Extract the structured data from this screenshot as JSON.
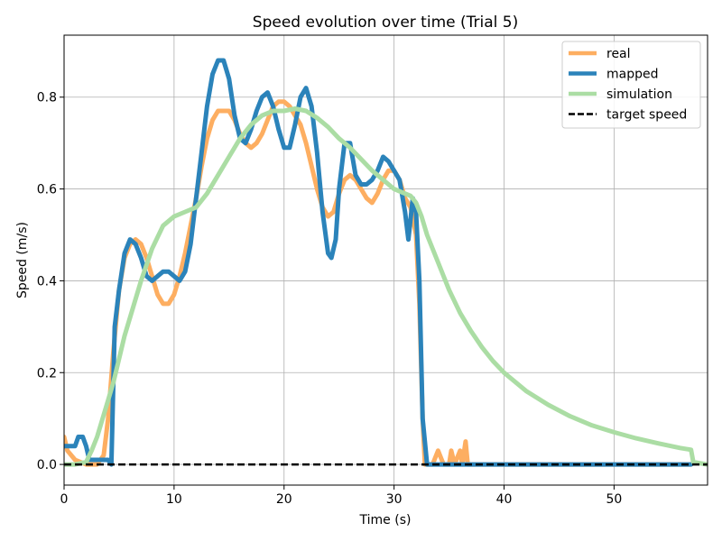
{
  "chart_data": {
    "type": "line",
    "title": "Speed evolution over time (Trial 5)",
    "xlabel": "Time (s)",
    "ylabel": "Speed (m/s)",
    "xlim": [
      0,
      58.5
    ],
    "ylim": [
      -0.045,
      0.935
    ],
    "xticks": [
      0,
      10,
      20,
      30,
      40,
      50
    ],
    "yticks": [
      0.0,
      0.2,
      0.4,
      0.6,
      0.8
    ],
    "xtick_labels": [
      "0",
      "10",
      "20",
      "30",
      "40",
      "50"
    ],
    "ytick_labels": [
      "0.0",
      "0.2",
      "0.4",
      "0.6",
      "0.8"
    ],
    "grid": true,
    "legend_position": "top-right",
    "series": [
      {
        "name": "real",
        "color": "#fdae61",
        "points": [
          [
            0,
            0.06
          ],
          [
            0.3,
            0.03
          ],
          [
            1,
            0.01
          ],
          [
            2,
            0.0
          ],
          [
            3,
            0.0
          ],
          [
            3.6,
            0.02
          ],
          [
            4,
            0.1
          ],
          [
            4.5,
            0.25
          ],
          [
            5,
            0.38
          ],
          [
            5.5,
            0.45
          ],
          [
            6,
            0.48
          ],
          [
            6.5,
            0.49
          ],
          [
            7,
            0.48
          ],
          [
            7.5,
            0.45
          ],
          [
            8,
            0.41
          ],
          [
            8.5,
            0.37
          ],
          [
            9,
            0.35
          ],
          [
            9.5,
            0.35
          ],
          [
            10,
            0.37
          ],
          [
            10.5,
            0.41
          ],
          [
            11,
            0.46
          ],
          [
            11.5,
            0.52
          ],
          [
            12,
            0.58
          ],
          [
            12.5,
            0.65
          ],
          [
            13,
            0.71
          ],
          [
            13.5,
            0.75
          ],
          [
            14,
            0.77
          ],
          [
            14.5,
            0.77
          ],
          [
            15,
            0.77
          ],
          [
            15.5,
            0.75
          ],
          [
            16,
            0.72
          ],
          [
            16.5,
            0.7
          ],
          [
            17,
            0.69
          ],
          [
            17.5,
            0.7
          ],
          [
            18,
            0.72
          ],
          [
            18.5,
            0.75
          ],
          [
            19,
            0.78
          ],
          [
            19.5,
            0.79
          ],
          [
            20,
            0.79
          ],
          [
            20.5,
            0.78
          ],
          [
            21,
            0.76
          ],
          [
            21.5,
            0.74
          ],
          [
            22,
            0.7
          ],
          [
            22.5,
            0.65
          ],
          [
            23,
            0.6
          ],
          [
            23.5,
            0.56
          ],
          [
            24,
            0.54
          ],
          [
            24.5,
            0.55
          ],
          [
            25,
            0.59
          ],
          [
            25.5,
            0.62
          ],
          [
            26,
            0.63
          ],
          [
            26.5,
            0.62
          ],
          [
            27,
            0.6
          ],
          [
            27.5,
            0.58
          ],
          [
            28,
            0.57
          ],
          [
            28.5,
            0.59
          ],
          [
            29,
            0.62
          ],
          [
            29.5,
            0.64
          ],
          [
            30,
            0.64
          ],
          [
            30.5,
            0.62
          ],
          [
            31,
            0.58
          ],
          [
            31.5,
            0.56
          ],
          [
            32,
            0.5
          ],
          [
            32.3,
            0.35
          ],
          [
            32.6,
            0.1
          ],
          [
            32.8,
            0.0
          ],
          [
            33.5,
            0.0
          ],
          [
            34,
            0.03
          ],
          [
            34.5,
            0.0
          ],
          [
            35,
            0.0
          ],
          [
            35.2,
            0.03
          ],
          [
            35.5,
            0.0
          ],
          [
            36,
            0.03
          ],
          [
            36.2,
            0.0
          ],
          [
            36.5,
            0.05
          ],
          [
            36.7,
            0.0
          ],
          [
            40,
            0.0
          ],
          [
            50,
            0.0
          ],
          [
            57,
            0.0
          ]
        ]
      },
      {
        "name": "mapped",
        "color": "#2b83ba",
        "points": [
          [
            0,
            0.04
          ],
          [
            0.5,
            0.04
          ],
          [
            1,
            0.04
          ],
          [
            1.3,
            0.06
          ],
          [
            1.7,
            0.06
          ],
          [
            2,
            0.04
          ],
          [
            2.3,
            0.01
          ],
          [
            3,
            0.01
          ],
          [
            4,
            0.01
          ],
          [
            4.3,
            0.0
          ],
          [
            4.6,
            0.3
          ],
          [
            5,
            0.38
          ],
          [
            5.5,
            0.46
          ],
          [
            6,
            0.49
          ],
          [
            6.5,
            0.48
          ],
          [
            7,
            0.45
          ],
          [
            7.5,
            0.41
          ],
          [
            8,
            0.4
          ],
          [
            8.5,
            0.41
          ],
          [
            9,
            0.42
          ],
          [
            9.5,
            0.42
          ],
          [
            10,
            0.41
          ],
          [
            10.5,
            0.4
          ],
          [
            11,
            0.42
          ],
          [
            11.5,
            0.48
          ],
          [
            12,
            0.58
          ],
          [
            12.5,
            0.68
          ],
          [
            13,
            0.78
          ],
          [
            13.5,
            0.85
          ],
          [
            14,
            0.88
          ],
          [
            14.5,
            0.88
          ],
          [
            15,
            0.84
          ],
          [
            15.5,
            0.76
          ],
          [
            16,
            0.71
          ],
          [
            16.5,
            0.7
          ],
          [
            17,
            0.73
          ],
          [
            17.5,
            0.77
          ],
          [
            18,
            0.8
          ],
          [
            18.5,
            0.81
          ],
          [
            19,
            0.78
          ],
          [
            19.5,
            0.73
          ],
          [
            20,
            0.69
          ],
          [
            20.5,
            0.69
          ],
          [
            21,
            0.74
          ],
          [
            21.5,
            0.8
          ],
          [
            22,
            0.82
          ],
          [
            22.5,
            0.78
          ],
          [
            23,
            0.68
          ],
          [
            23.5,
            0.55
          ],
          [
            24,
            0.46
          ],
          [
            24.3,
            0.45
          ],
          [
            24.7,
            0.49
          ],
          [
            25,
            0.6
          ],
          [
            25.5,
            0.7
          ],
          [
            26,
            0.7
          ],
          [
            26.5,
            0.63
          ],
          [
            27,
            0.61
          ],
          [
            27.5,
            0.61
          ],
          [
            28,
            0.62
          ],
          [
            28.5,
            0.64
          ],
          [
            29,
            0.67
          ],
          [
            29.5,
            0.66
          ],
          [
            30,
            0.64
          ],
          [
            30.5,
            0.62
          ],
          [
            31,
            0.55
          ],
          [
            31.3,
            0.49
          ],
          [
            31.7,
            0.58
          ],
          [
            32,
            0.55
          ],
          [
            32.3,
            0.4
          ],
          [
            32.6,
            0.1
          ],
          [
            33,
            0.0
          ],
          [
            40,
            0.0
          ],
          [
            50,
            0.0
          ],
          [
            57,
            0.0
          ]
        ]
      },
      {
        "name": "simulation",
        "color": "#abdda4",
        "points": [
          [
            0,
            0.0
          ],
          [
            1,
            0.0
          ],
          [
            2,
            0.005
          ],
          [
            2.5,
            0.03
          ],
          [
            3,
            0.06
          ],
          [
            3.5,
            0.1
          ],
          [
            4,
            0.14
          ],
          [
            4.5,
            0.18
          ],
          [
            5,
            0.23
          ],
          [
            5.5,
            0.28
          ],
          [
            6,
            0.32
          ],
          [
            7,
            0.4
          ],
          [
            8,
            0.47
          ],
          [
            9,
            0.52
          ],
          [
            10,
            0.54
          ],
          [
            11,
            0.55
          ],
          [
            12,
            0.56
          ],
          [
            13,
            0.59
          ],
          [
            14,
            0.63
          ],
          [
            15,
            0.67
          ],
          [
            16,
            0.71
          ],
          [
            17,
            0.74
          ],
          [
            18,
            0.76
          ],
          [
            19,
            0.77
          ],
          [
            20,
            0.77
          ],
          [
            21,
            0.775
          ],
          [
            22,
            0.77
          ],
          [
            23,
            0.755
          ],
          [
            24,
            0.735
          ],
          [
            25,
            0.71
          ],
          [
            26,
            0.69
          ],
          [
            27,
            0.665
          ],
          [
            28,
            0.64
          ],
          [
            29,
            0.62
          ],
          [
            30,
            0.6
          ],
          [
            31,
            0.59
          ],
          [
            31.5,
            0.585
          ],
          [
            32,
            0.57
          ],
          [
            32.5,
            0.54
          ],
          [
            33,
            0.5
          ],
          [
            34,
            0.44
          ],
          [
            35,
            0.38
          ],
          [
            36,
            0.33
          ],
          [
            37,
            0.29
          ],
          [
            38,
            0.255
          ],
          [
            39,
            0.225
          ],
          [
            40,
            0.2
          ],
          [
            42,
            0.16
          ],
          [
            44,
            0.13
          ],
          [
            46,
            0.105
          ],
          [
            48,
            0.085
          ],
          [
            50,
            0.07
          ],
          [
            52,
            0.057
          ],
          [
            54,
            0.046
          ],
          [
            56,
            0.036
          ],
          [
            57,
            0.032
          ],
          [
            57.2,
            0.005
          ],
          [
            58.5,
            0.0
          ]
        ]
      },
      {
        "name": "target speed",
        "color": "#000000",
        "dashed": true,
        "points": [
          [
            0,
            0.0
          ],
          [
            58.5,
            0.0
          ]
        ]
      }
    ]
  }
}
